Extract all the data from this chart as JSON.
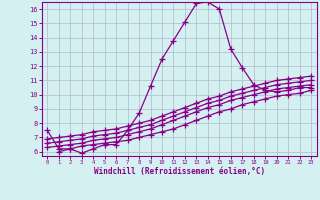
{
  "xlabel": "Windchill (Refroidissement éolien,°C)",
  "xlim": [
    -0.5,
    23.5
  ],
  "ylim": [
    5.7,
    16.5
  ],
  "xticks": [
    0,
    1,
    2,
    3,
    4,
    5,
    6,
    7,
    8,
    9,
    10,
    11,
    12,
    13,
    14,
    15,
    16,
    17,
    18,
    19,
    20,
    21,
    22,
    23
  ],
  "yticks": [
    6,
    7,
    8,
    9,
    10,
    11,
    12,
    13,
    14,
    15,
    16
  ],
  "bg_color": "#d4f0f0",
  "grid_color": "#b0b8cc",
  "line_color": "#880088",
  "line1_x": [
    0,
    1,
    2,
    3,
    4,
    5,
    6,
    7,
    8,
    9,
    10,
    11,
    12,
    13,
    14,
    15,
    16,
    17,
    18,
    19,
    20,
    21,
    22,
    23
  ],
  "line1_y": [
    7.5,
    6.2,
    6.2,
    5.9,
    6.2,
    6.5,
    6.5,
    7.5,
    8.7,
    10.6,
    12.5,
    13.8,
    15.1,
    16.4,
    16.5,
    16.0,
    13.2,
    11.9,
    10.7,
    10.3,
    10.2,
    10.3,
    10.5,
    10.5
  ],
  "line2_x": [
    1,
    2,
    3,
    4,
    5,
    6,
    7,
    8,
    9,
    10,
    11,
    12,
    13,
    14,
    15,
    16,
    17,
    18,
    19,
    20,
    21,
    22,
    23
  ],
  "line2_y": [
    6.0,
    6.2,
    6.4,
    6.5,
    6.6,
    6.7,
    6.8,
    7.0,
    7.2,
    7.4,
    7.6,
    7.9,
    8.2,
    8.5,
    8.8,
    9.0,
    9.3,
    9.5,
    9.7,
    9.9,
    10.0,
    10.1,
    10.3
  ],
  "line3_x": [
    0,
    1,
    2,
    3,
    4,
    5,
    6,
    7,
    8,
    9,
    10,
    11,
    12,
    13,
    14,
    15,
    16,
    17,
    18,
    19,
    20,
    21,
    22,
    23
  ],
  "line3_y": [
    6.3,
    6.4,
    6.5,
    6.6,
    6.8,
    6.9,
    7.0,
    7.2,
    7.4,
    7.6,
    7.9,
    8.2,
    8.5,
    8.8,
    9.1,
    9.3,
    9.6,
    9.8,
    10.0,
    10.2,
    10.4,
    10.5,
    10.6,
    10.7
  ],
  "line4_x": [
    0,
    1,
    2,
    3,
    4,
    5,
    6,
    7,
    8,
    9,
    10,
    11,
    12,
    13,
    14,
    15,
    16,
    17,
    18,
    19,
    20,
    21,
    22,
    23
  ],
  "line4_y": [
    6.6,
    6.7,
    6.8,
    6.9,
    7.1,
    7.2,
    7.3,
    7.5,
    7.7,
    7.9,
    8.2,
    8.5,
    8.8,
    9.1,
    9.4,
    9.6,
    9.9,
    10.1,
    10.3,
    10.5,
    10.7,
    10.8,
    10.9,
    11.0
  ],
  "line5_x": [
    0,
    1,
    2,
    3,
    4,
    5,
    6,
    7,
    8,
    9,
    10,
    11,
    12,
    13,
    14,
    15,
    16,
    17,
    18,
    19,
    20,
    21,
    22,
    23
  ],
  "line5_y": [
    6.9,
    7.0,
    7.1,
    7.2,
    7.4,
    7.5,
    7.6,
    7.8,
    8.0,
    8.2,
    8.5,
    8.8,
    9.1,
    9.4,
    9.7,
    9.9,
    10.2,
    10.4,
    10.6,
    10.8,
    11.0,
    11.1,
    11.2,
    11.3
  ]
}
